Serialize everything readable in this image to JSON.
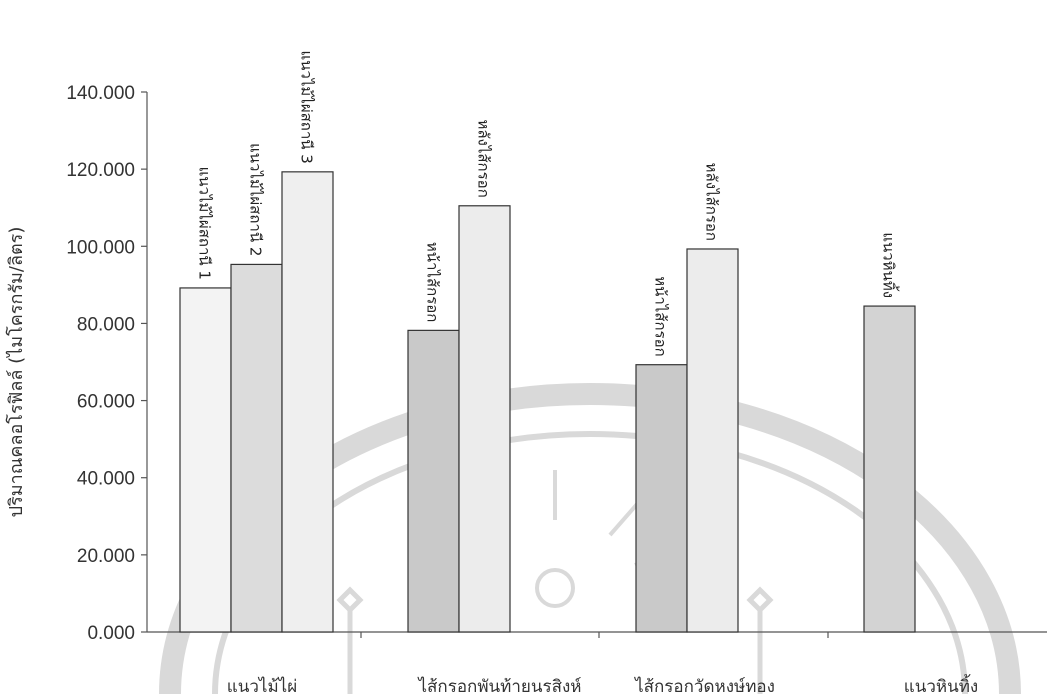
{
  "chart_data": {
    "type": "bar",
    "ylabel": "ปริมาณคลอโรฟิลล์ (ไมโครกรัม/ลิตร)",
    "ylim": [
      0,
      140
    ],
    "yticks": [
      "0.000",
      "20.000",
      "40.000",
      "60.000",
      "80.000",
      "100.000",
      "120.000",
      "140.000"
    ],
    "grid": false,
    "legend": "none",
    "groups": [
      {
        "category": "แนวไม้ไผ่",
        "bars": [
          {
            "label": "แนวไม้ไผ่สถานี 1",
            "value": 89.2,
            "color": "#f3f3f3"
          },
          {
            "label": "แนวไม้ไผ่สถานี 2",
            "value": 95.3,
            "color": "#dcdcdc"
          },
          {
            "label": "แนวไม้ไผ่สถานี 3",
            "value": 119.3,
            "color": "#efefef"
          }
        ]
      },
      {
        "category": "ไส้กรอกพันท้ายนรสิงห์",
        "bars": [
          {
            "label": "หน้าไส้กรอก",
            "value": 78.2,
            "color": "#c9c9c9"
          },
          {
            "label": "หลังไส้กรอก",
            "value": 110.5,
            "color": "#ececec"
          }
        ]
      },
      {
        "category": "ไส้กรอกวัดหงษ์ทอง",
        "bars": [
          {
            "label": "หน้าไส้กรอก",
            "value": 69.3,
            "color": "#c9c9c9"
          },
          {
            "label": "หลังไส้กรอก",
            "value": 99.3,
            "color": "#ececec"
          }
        ]
      },
      {
        "category": "แนวหินทิ้ง",
        "bars": [
          {
            "label": "แนวหินทิ้ง",
            "value": 84.5,
            "color": "#d3d3d3"
          }
        ]
      }
    ]
  }
}
